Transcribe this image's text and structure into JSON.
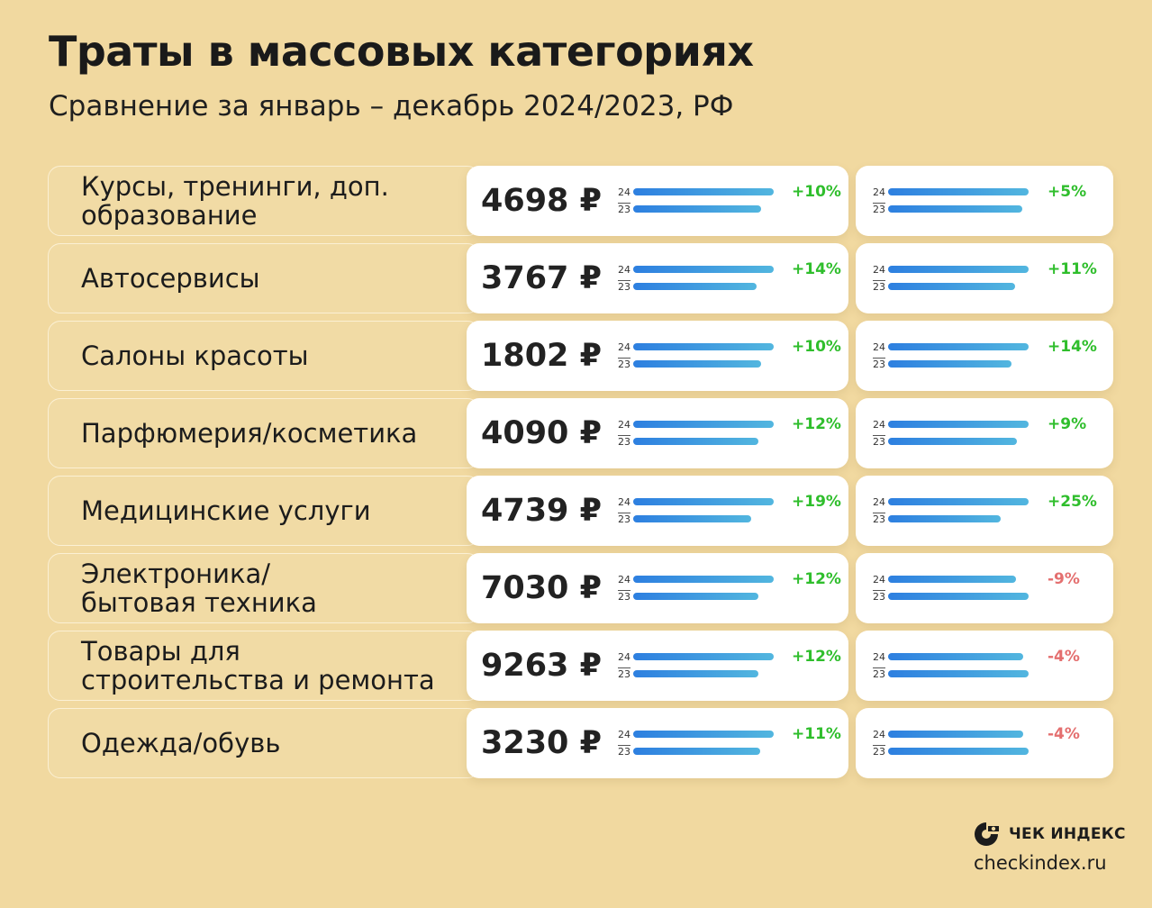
{
  "title": "Траты в массовых категориях",
  "subtitle": "Сравнение за январь – декабрь 2024/2023, РФ",
  "brand": {
    "name": "ЧЕК ИНДЕКС",
    "site": "checkindex.ru"
  },
  "year_labels": {
    "current": "24",
    "previous": "23"
  },
  "colors": {
    "background": "#f1d9a0",
    "bar": "#3a95e0",
    "positive": "#2fbe2c",
    "negative": "#e46f6f"
  },
  "chart_data": {
    "type": "bar",
    "title": "Траты в массовых категориях",
    "subtitle": "Сравнение за январь – декабрь 2024/2023, РФ",
    "categories": [
      "Курсы, тренинги, доп.\nобразование",
      "Автосервисы",
      "Салоны красоты",
      "Парфюмерия/косметика",
      "Медицинские услуги",
      "Электроника/\nбытовая техника",
      "Товары для\nстроительства и ремонта",
      "Одежда/обувь"
    ],
    "amounts": [
      "4698 ₽",
      "3767 ₽",
      "1802 ₽",
      "4090 ₽",
      "4739 ₽",
      "7030 ₽",
      "9263 ₽",
      "3230 ₽"
    ],
    "series": [
      {
        "values": [
          10,
          14,
          10,
          12,
          19,
          12,
          12,
          11
        ],
        "labels": [
          "+10%",
          "+14%",
          "+10%",
          "+12%",
          "+19%",
          "+12%",
          "+12%",
          "+11%"
        ]
      },
      {
        "values": [
          5,
          11,
          14,
          9,
          25,
          -9,
          -4,
          -4
        ],
        "labels": [
          "+5%",
          "+11%",
          "+14%",
          "+9%",
          "+25%",
          "-9%",
          "-4%",
          "-4%"
        ]
      }
    ]
  }
}
